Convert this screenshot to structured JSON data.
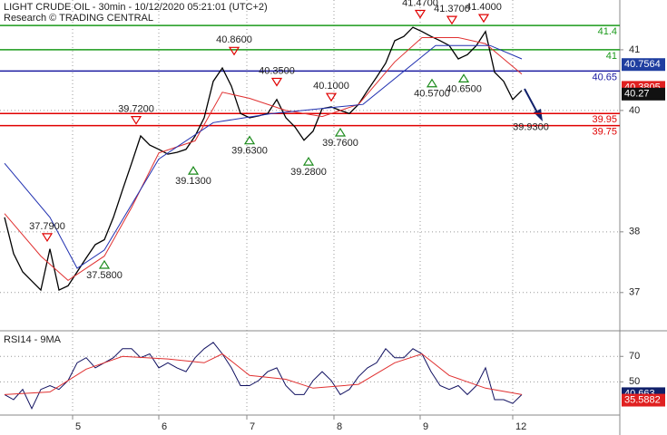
{
  "chart_data": [
    {
      "type": "line",
      "title": "LIGHT CRUDE OIL - 30min - 10/12/2020 05:21:01 (UTC+2)",
      "subtitle": "Research © TRADING CENTRAL",
      "xlim": [
        -0.5,
        67.8
      ],
      "ylim": [
        36.37,
        41.82
      ],
      "yticks": [
        41,
        40,
        38,
        37
      ],
      "grid": true,
      "series": [
        {
          "color": "#000000",
          "x": [
            0,
            1,
            2,
            3,
            4,
            5,
            6,
            7,
            8,
            9,
            10,
            11,
            12,
            13,
            14,
            15,
            16,
            17,
            18,
            19,
            20,
            21,
            22,
            23,
            24,
            25,
            26,
            27,
            28,
            29,
            30,
            31,
            32,
            33,
            34,
            35,
            36,
            37,
            38,
            39,
            40,
            41,
            42,
            43,
            44,
            45,
            46,
            47,
            48,
            49,
            50,
            51,
            52,
            53,
            54,
            55,
            56,
            57
          ],
          "values": [
            38.24,
            37.64,
            37.34,
            37.19,
            37.04,
            37.72,
            37.04,
            37.11,
            37.34,
            37.57,
            37.79,
            37.87,
            38.24,
            38.69,
            39.13,
            39.58,
            39.43,
            39.36,
            39.28,
            39.31,
            39.36,
            39.58,
            39.88,
            40.48,
            40.7,
            40.4,
            39.95,
            39.88,
            39.91,
            39.95,
            40.18,
            39.88,
            39.73,
            39.51,
            39.66,
            40.03,
            40.06,
            40.0,
            39.95,
            40.1,
            40.33,
            40.55,
            40.78,
            41.15,
            41.22,
            41.37,
            41.3,
            41.22,
            41.15,
            41.07,
            40.85,
            40.92,
            41.07,
            41.3,
            40.63,
            40.48,
            40.18,
            40.33
          ]
        },
        {
          "color": "#e03030",
          "x": [
            0,
            4,
            7,
            11,
            14,
            17,
            21,
            24,
            27,
            31,
            35,
            39,
            43,
            46,
            50,
            53,
            57
          ],
          "values": [
            38.3,
            37.6,
            37.2,
            37.6,
            38.4,
            39.3,
            39.5,
            40.3,
            40.2,
            40.0,
            39.9,
            40.1,
            40.8,
            41.2,
            41.2,
            41.1,
            40.6
          ]
        },
        {
          "color": "#2030b0",
          "x": [
            0,
            5,
            8,
            11,
            17,
            23,
            29.5,
            39.5,
            47.5,
            53.5,
            57
          ],
          "values": [
            39.13,
            38.24,
            37.4,
            37.7,
            39.2,
            39.8,
            39.95,
            40.1,
            41.07,
            41.07,
            40.85
          ]
        }
      ],
      "levels": [
        {
          "value": 41.4,
          "color": "#1a9a1a"
        },
        {
          "value": 41,
          "color": "#1a9a1a"
        },
        {
          "value": 40.65,
          "color": "#1a1aa0"
        },
        {
          "value": 39.95,
          "color": "#e00000"
        },
        {
          "value": 39.75,
          "color": "#e00000"
        }
      ],
      "annotations": [
        {
          "x": 45.8,
          "value": 41.47,
          "label": "41.4700",
          "kind": "high"
        },
        {
          "x": 49.3,
          "value": 41.37,
          "label": "41.3700",
          "kind": "high"
        },
        {
          "x": 52.8,
          "value": 41.4,
          "label": "41.4000",
          "kind": "high"
        },
        {
          "x": 25.3,
          "value": 40.86,
          "label": "40.8600",
          "kind": "high"
        },
        {
          "x": 30,
          "value": 40.35,
          "label": "40.3500",
          "kind": "high"
        },
        {
          "x": 36,
          "value": 40.1,
          "label": "40.1000",
          "kind": "high"
        },
        {
          "x": 14.5,
          "value": 39.72,
          "label": "39.7200",
          "kind": "high"
        },
        {
          "x": 4.7,
          "value": 37.79,
          "label": "37.7900",
          "kind": "high"
        },
        {
          "x": 47.1,
          "value": 40.57,
          "label": "40.5700",
          "kind": "low"
        },
        {
          "x": 50.6,
          "value": 40.65,
          "label": "40.6500",
          "kind": "low"
        },
        {
          "x": 27,
          "value": 39.63,
          "label": "39.6300",
          "kind": "low"
        },
        {
          "x": 33.5,
          "value": 39.28,
          "label": "39.2800",
          "kind": "low"
        },
        {
          "x": 37,
          "value": 39.76,
          "label": "39.7600",
          "kind": "low"
        },
        {
          "x": 20.8,
          "value": 39.13,
          "label": "39.1300",
          "kind": "low"
        },
        {
          "x": 11,
          "value": 37.58,
          "label": "37.5800",
          "kind": "low"
        },
        {
          "x": 58,
          "value": 39.93,
          "label": "39.9300",
          "kind": "target"
        }
      ],
      "price_tags": [
        {
          "value": 40.7564,
          "color": "#1f3ea0"
        },
        {
          "value": 40.3805,
          "color": "#e02020"
        },
        {
          "value": 40.27,
          "color": "#111111"
        }
      ]
    },
    {
      "type": "line",
      "title": "RSI14 - 9MA",
      "xlim": [
        -0.5,
        67.8
      ],
      "ylim": [
        26,
        88
      ],
      "yticks": [
        70,
        50
      ],
      "xticks": [
        {
          "value": 7.5,
          "label": "5"
        },
        {
          "value": 17,
          "label": "6"
        },
        {
          "value": 26.7,
          "label": "7"
        },
        {
          "value": 36.3,
          "label": "8"
        },
        {
          "value": 45.8,
          "label": "9"
        },
        {
          "value": 56,
          "label": "12"
        }
      ],
      "grid": true,
      "series": [
        {
          "color": "#101060",
          "x": [
            0,
            1,
            2,
            3,
            4,
            5,
            6,
            7,
            8,
            9,
            10,
            11,
            12,
            13,
            14,
            15,
            16,
            17,
            18,
            19,
            20,
            21,
            22,
            23,
            24,
            25,
            26,
            27,
            28,
            29,
            30,
            31,
            32,
            33,
            34,
            35,
            36,
            37,
            38,
            39,
            40,
            41,
            42,
            43,
            44,
            45,
            46,
            47,
            48,
            49,
            50,
            51,
            52,
            53,
            54,
            55,
            56,
            57
          ],
          "values": [
            40,
            36,
            44,
            29,
            44,
            47,
            44,
            51,
            65,
            69,
            61,
            65,
            69,
            76,
            76,
            69,
            72,
            61,
            65,
            61,
            58,
            69,
            76,
            81,
            72,
            61,
            47,
            47,
            51,
            58,
            61,
            47,
            40,
            40,
            51,
            58,
            51,
            40,
            44,
            54,
            61,
            65,
            76,
            69,
            69,
            76,
            72,
            58,
            47,
            44,
            47,
            40,
            47,
            61,
            36,
            36,
            33,
            40
          ]
        },
        {
          "color": "#e03030",
          "x": [
            0,
            5,
            9,
            13,
            18,
            22,
            24,
            27,
            31,
            34,
            39,
            43,
            46,
            49,
            53,
            57
          ],
          "values": [
            40,
            42,
            60,
            70,
            68,
            65,
            72,
            55,
            52,
            45,
            48,
            65,
            72,
            55,
            45,
            40
          ]
        }
      ],
      "price_tags": [
        {
          "value": 40.663,
          "color": "#10206a"
        },
        {
          "value": 35.5882,
          "color": "#e02020"
        }
      ]
    }
  ]
}
